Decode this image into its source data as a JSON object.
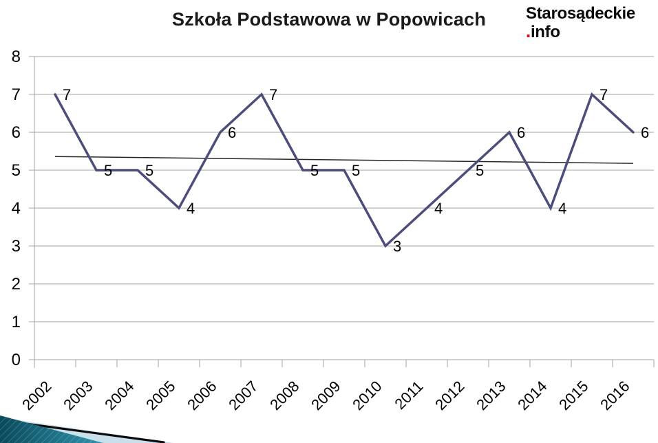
{
  "chart_data": {
    "type": "line",
    "title": "Szkoła Podstawowa w Popowicach",
    "categories": [
      "2002",
      "2003",
      "2004",
      "2005",
      "2006",
      "2007",
      "2008",
      "2009",
      "2010",
      "2011",
      "2012",
      "2013",
      "2014",
      "2015",
      "2016"
    ],
    "values": [
      7,
      5,
      5,
      4,
      6,
      7,
      5,
      5,
      3,
      4,
      5,
      6,
      4,
      7,
      6
    ],
    "ylim": [
      0,
      8
    ],
    "y_ticks": [
      0,
      1,
      2,
      3,
      4,
      5,
      6,
      7,
      8
    ],
    "grid": true,
    "legend": "none",
    "data_labels": true,
    "xlabel": "",
    "ylabel": "",
    "line_color": "#4C4D7A",
    "gridline_color": "#A3A3A3",
    "label_color": "#000000",
    "title_color": "#1A1A1A",
    "trendline": {
      "start_value": 5.36,
      "end_value": 5.18,
      "color": "#262626"
    }
  },
  "logo": {
    "line1": "Starosądeckie",
    "dot": ".",
    "line2": "info",
    "dot_color": "#E30613",
    "text_color": "#0A0A0A"
  },
  "decoration": {
    "teal_dark": "#0A4A5C",
    "teal_light": "#2E93AC",
    "pale_blue": "#C9E0EA",
    "edge_line": "#0B0B0B"
  }
}
